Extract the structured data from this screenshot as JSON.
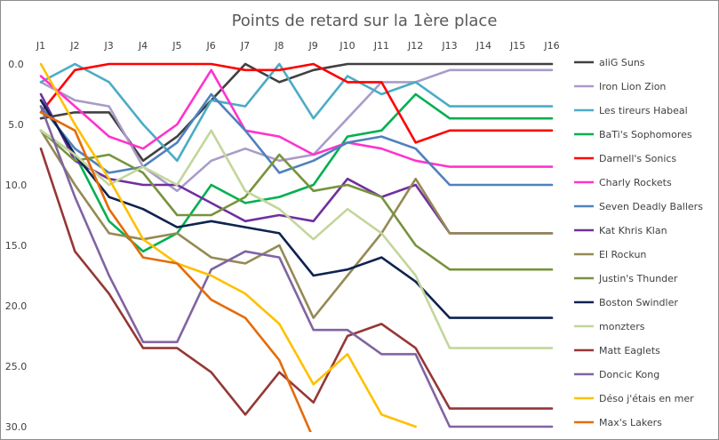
{
  "chart_data": {
    "type": "line",
    "title": "Points de retard sur la 1ère place",
    "xlabel": "",
    "ylabel": "",
    "categories": [
      "J1",
      "J2",
      "J3",
      "J4",
      "J5",
      "J6",
      "J7",
      "J8",
      "J9",
      "J10",
      "J11",
      "J12",
      "J13",
      "J14",
      "J15",
      "J16"
    ],
    "y_ticks": [
      "0.0",
      "5.0",
      "10.0",
      "15.0",
      "20.0",
      "25.0",
      "30.0"
    ],
    "ylim": [
      0,
      30
    ],
    "y_inverted": true,
    "grid": false,
    "legend_position": "right",
    "series": [
      {
        "name": "aliG Suns",
        "color": "#404040",
        "values": [
          4.5,
          4,
          4,
          8,
          6,
          3,
          0,
          1.5,
          0.5,
          0,
          0,
          0,
          0,
          0,
          0,
          0
        ]
      },
      {
        "name": "Iron Lion Zion",
        "color": "#A99BC9",
        "values": [
          1.5,
          3,
          3.5,
          8.5,
          10.5,
          8,
          7,
          8,
          7.5,
          4.5,
          1.5,
          1.5,
          0.5,
          0.5,
          0.5,
          0.5
        ]
      },
      {
        "name": "Les tireurs Habeal",
        "color": "#4BACC6",
        "values": [
          1.5,
          0,
          1.5,
          5,
          8,
          3,
          3.5,
          0,
          4.5,
          1,
          2.5,
          1.5,
          3.5,
          3.5,
          3.5,
          3.5
        ]
      },
      {
        "name": "BaTi's Sophomores",
        "color": "#00B050",
        "values": [
          5.5,
          7.5,
          13,
          15.5,
          14,
          10,
          11.5,
          11,
          10,
          6,
          5.5,
          2.5,
          4.5,
          4.5,
          4.5,
          4.5
        ]
      },
      {
        "name": "Darnell's Sonics",
        "color": "#FF0000",
        "values": [
          4,
          0.5,
          0,
          0,
          0,
          0,
          0.5,
          0.5,
          0,
          1.5,
          1.5,
          6.5,
          5.5,
          5.5,
          5.5,
          5.5
        ]
      },
      {
        "name": "Charly Rockets",
        "color": "#FF33CC",
        "values": [
          1,
          3.5,
          6,
          7,
          5,
          0.5,
          5.5,
          6,
          7.5,
          6.5,
          7,
          8,
          8.5,
          8.5,
          8.5,
          8.5
        ]
      },
      {
        "name": "Seven Deadly Ballers",
        "color": "#4F81BD",
        "values": [
          3.5,
          7,
          9,
          8.5,
          6.5,
          2.5,
          5.5,
          9,
          8,
          6.5,
          6,
          7,
          10,
          10,
          10,
          10
        ]
      },
      {
        "name": "Kat Khris Klan",
        "color": "#7030A0",
        "values": [
          2.5,
          8,
          9.5,
          10,
          10,
          11.5,
          13,
          12.5,
          13,
          9.5,
          11,
          10,
          14,
          14,
          14,
          14
        ]
      },
      {
        "name": "El Rockun",
        "color": "#948A54",
        "values": [
          5.5,
          10,
          14,
          14.5,
          14,
          16,
          16.5,
          15,
          21,
          17.5,
          14,
          9.5,
          14,
          14,
          14,
          14
        ]
      },
      {
        "name": "Justin's Thunder",
        "color": "#77933C",
        "values": [
          5.5,
          8,
          7.5,
          9,
          12.5,
          12.5,
          11,
          7.5,
          10.5,
          10,
          11,
          15,
          17,
          17,
          17,
          17
        ]
      },
      {
        "name": "Boston Swindler",
        "color": "#0F2350",
        "values": [
          3,
          7.5,
          11,
          12,
          13.5,
          13,
          13.5,
          14,
          17.5,
          17,
          16,
          18,
          21,
          21,
          21,
          21
        ]
      },
      {
        "name": "monzters",
        "color": "#C3D69B",
        "values": [
          5.5,
          7.5,
          10,
          8.5,
          10,
          5.5,
          10.5,
          12,
          14.5,
          12,
          14,
          17.5,
          23.5,
          23.5,
          23.5,
          23.5
        ]
      },
      {
        "name": "Matt Eaglets",
        "color": "#953735",
        "values": [
          7,
          15.5,
          19,
          23.5,
          23.5,
          25.5,
          29,
          25.5,
          28,
          22.5,
          21.5,
          23.5,
          28.5,
          28.5,
          28.5,
          28.5
        ]
      },
      {
        "name": "Doncic Kong",
        "color": "#8064A2",
        "values": [
          3.5,
          11,
          17.5,
          23,
          23,
          17,
          15.5,
          16,
          22,
          22,
          24,
          24,
          30,
          30,
          30,
          30
        ]
      },
      {
        "name": "Déso j'étais en mer",
        "color": "#FFC000",
        "values": [
          0,
          5,
          9.5,
          14.5,
          16.5,
          17.5,
          19,
          21.5,
          26.5,
          24,
          29,
          30,
          null,
          null,
          null,
          null
        ]
      },
      {
        "name": "Max's Lakers",
        "color": "#E36C09",
        "values": [
          4,
          5.5,
          12,
          16,
          16.5,
          19.5,
          21,
          24.5,
          31,
          null,
          null,
          null,
          null,
          null,
          null,
          null
        ]
      }
    ]
  }
}
